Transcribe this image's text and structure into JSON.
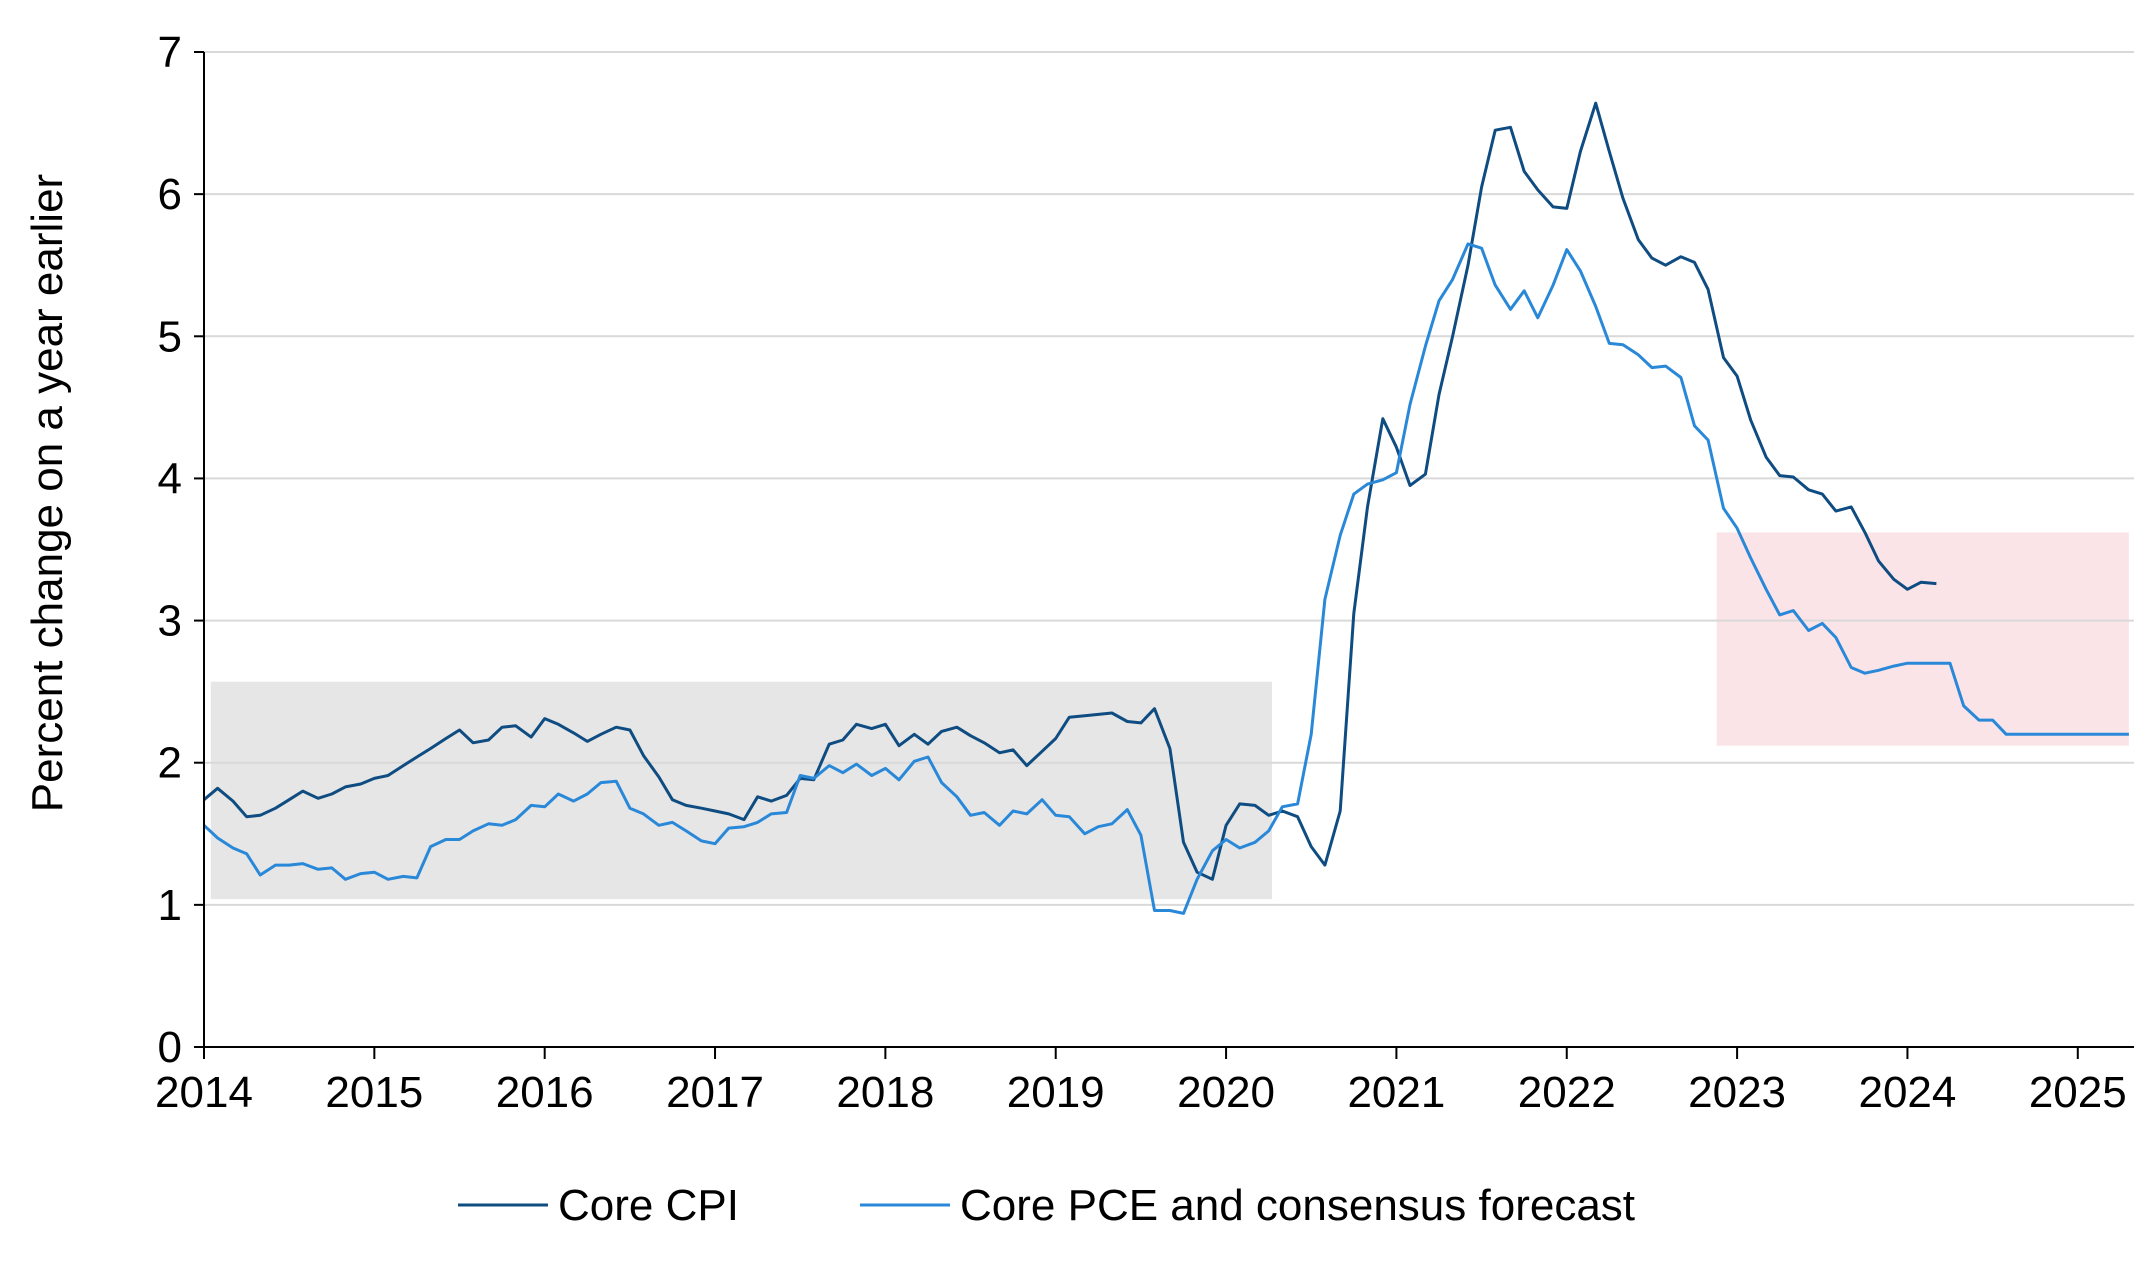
{
  "chart_data": {
    "type": "line",
    "title": "",
    "xlabel": "",
    "ylabel": "Percent change on a year earlier",
    "xlim": [
      2014.0,
      2025.33
    ],
    "ylim": [
      0,
      7
    ],
    "x_ticks": [
      "2014",
      "2015",
      "2016",
      "2017",
      "2018",
      "2019",
      "2020",
      "2021",
      "2022",
      "2023",
      "2024",
      "2025"
    ],
    "y_ticks": [
      "0",
      "1",
      "2",
      "3",
      "4",
      "5",
      "6",
      "7"
    ],
    "grid": "horizontal",
    "legend_position": "bottom",
    "shaded_ranges": [
      {
        "x0": 2014.04,
        "x1": 2020.27,
        "y0": 1.04,
        "y1": 2.57,
        "color": "#e6e6e6"
      },
      {
        "x0": 2022.88,
        "x1": 2025.3,
        "y0": 2.12,
        "y1": 3.62,
        "color": "#fbe4e8"
      }
    ],
    "series": [
      {
        "name": "Core CPI",
        "color": "#0f4c81",
        "points": [
          [
            2014.0,
            1.74
          ],
          [
            2014.08,
            1.82
          ],
          [
            2014.17,
            1.73
          ],
          [
            2014.25,
            1.62
          ],
          [
            2014.33,
            1.63
          ],
          [
            2014.42,
            1.68
          ],
          [
            2014.5,
            1.74
          ],
          [
            2014.58,
            1.8
          ],
          [
            2014.67,
            1.75
          ],
          [
            2014.75,
            1.78
          ],
          [
            2014.83,
            1.83
          ],
          [
            2014.92,
            1.85
          ],
          [
            2015.0,
            1.89
          ],
          [
            2015.08,
            1.91
          ],
          [
            2015.17,
            1.98
          ],
          [
            2015.25,
            2.04
          ],
          [
            2015.33,
            2.1
          ],
          [
            2015.42,
            2.17
          ],
          [
            2015.5,
            2.23
          ],
          [
            2015.58,
            2.14
          ],
          [
            2015.67,
            2.16
          ],
          [
            2015.75,
            2.25
          ],
          [
            2015.83,
            2.26
          ],
          [
            2015.92,
            2.18
          ],
          [
            2016.0,
            2.31
          ],
          [
            2016.08,
            2.27
          ],
          [
            2016.17,
            2.21
          ],
          [
            2016.25,
            2.15
          ],
          [
            2016.33,
            2.2
          ],
          [
            2016.42,
            2.25
          ],
          [
            2016.5,
            2.23
          ],
          [
            2016.58,
            2.05
          ],
          [
            2016.67,
            1.9
          ],
          [
            2016.75,
            1.74
          ],
          [
            2016.83,
            1.7
          ],
          [
            2016.92,
            1.68
          ],
          [
            2017.0,
            1.66
          ],
          [
            2017.08,
            1.64
          ],
          [
            2017.17,
            1.6
          ],
          [
            2017.25,
            1.76
          ],
          [
            2017.33,
            1.73
          ],
          [
            2017.42,
            1.77
          ],
          [
            2017.5,
            1.89
          ],
          [
            2017.58,
            1.88
          ],
          [
            2017.67,
            2.13
          ],
          [
            2017.75,
            2.16
          ],
          [
            2017.83,
            2.27
          ],
          [
            2017.92,
            2.24
          ],
          [
            2018.0,
            2.27
          ],
          [
            2018.08,
            2.12
          ],
          [
            2018.17,
            2.2
          ],
          [
            2018.25,
            2.13
          ],
          [
            2018.33,
            2.22
          ],
          [
            2018.42,
            2.25
          ],
          [
            2018.5,
            2.19
          ],
          [
            2018.58,
            2.14
          ],
          [
            2018.67,
            2.07
          ],
          [
            2018.75,
            2.09
          ],
          [
            2018.83,
            1.98
          ],
          [
            2018.92,
            2.08
          ],
          [
            2019.0,
            2.17
          ],
          [
            2019.08,
            2.32
          ],
          [
            2019.17,
            2.33
          ],
          [
            2019.25,
            2.34
          ],
          [
            2019.33,
            2.35
          ],
          [
            2019.42,
            2.29
          ],
          [
            2019.5,
            2.28
          ],
          [
            2019.58,
            2.38
          ],
          [
            2019.67,
            2.1
          ],
          [
            2019.75,
            1.44
          ],
          [
            2019.83,
            1.23
          ],
          [
            2019.92,
            1.18
          ],
          [
            2020.0,
            1.56
          ],
          [
            2020.08,
            1.71
          ],
          [
            2020.17,
            1.7
          ],
          [
            2020.25,
            1.63
          ],
          [
            2020.33,
            1.66
          ],
          [
            2020.42,
            1.62
          ],
          [
            2020.5,
            1.41
          ],
          [
            2020.58,
            1.28
          ],
          [
            2020.67,
            1.66
          ],
          [
            2020.75,
            3.05
          ],
          [
            2020.83,
            3.8
          ],
          [
            2020.92,
            4.42
          ],
          [
            2021.0,
            4.22
          ],
          [
            2021.08,
            3.95
          ],
          [
            2021.17,
            4.03
          ],
          [
            2021.25,
            4.59
          ],
          [
            2021.33,
            5.0
          ],
          [
            2021.42,
            5.5
          ],
          [
            2021.5,
            6.05
          ],
          [
            2021.58,
            6.45
          ],
          [
            2021.67,
            6.47
          ],
          [
            2021.75,
            6.16
          ],
          [
            2021.83,
            6.03
          ],
          [
            2021.92,
            5.91
          ],
          [
            2022.0,
            5.9
          ],
          [
            2022.08,
            6.3
          ],
          [
            2022.17,
            6.64
          ],
          [
            2022.25,
            6.3
          ],
          [
            2022.33,
            5.97
          ],
          [
            2022.42,
            5.68
          ],
          [
            2022.5,
            5.55
          ],
          [
            2022.58,
            5.5
          ],
          [
            2022.67,
            5.56
          ],
          [
            2022.75,
            5.52
          ],
          [
            2022.83,
            5.33
          ],
          [
            2022.92,
            4.85
          ],
          [
            2023.0,
            4.72
          ],
          [
            2023.08,
            4.41
          ],
          [
            2023.17,
            4.15
          ],
          [
            2023.25,
            4.02
          ],
          [
            2023.33,
            4.01
          ],
          [
            2023.42,
            3.92
          ],
          [
            2023.5,
            3.89
          ],
          [
            2023.58,
            3.77
          ],
          [
            2023.67,
            3.8
          ],
          [
            2023.75,
            3.62
          ],
          [
            2023.83,
            3.42
          ],
          [
            2023.92,
            3.29
          ],
          [
            2024.0,
            3.22
          ],
          [
            2024.08,
            3.27
          ],
          [
            2024.17,
            3.26
          ]
        ]
      },
      {
        "name": "Core PCE and consensus forecast",
        "color": "#2a88d8",
        "points": [
          [
            2014.0,
            1.56
          ],
          [
            2014.08,
            1.47
          ],
          [
            2014.17,
            1.4
          ],
          [
            2014.25,
            1.36
          ],
          [
            2014.33,
            1.21
          ],
          [
            2014.42,
            1.28
          ],
          [
            2014.5,
            1.28
          ],
          [
            2014.58,
            1.29
          ],
          [
            2014.67,
            1.25
          ],
          [
            2014.75,
            1.26
          ],
          [
            2014.83,
            1.18
          ],
          [
            2014.92,
            1.22
          ],
          [
            2015.0,
            1.23
          ],
          [
            2015.08,
            1.18
          ],
          [
            2015.17,
            1.2
          ],
          [
            2015.25,
            1.19
          ],
          [
            2015.33,
            1.41
          ],
          [
            2015.42,
            1.46
          ],
          [
            2015.5,
            1.46
          ],
          [
            2015.58,
            1.52
          ],
          [
            2015.67,
            1.57
          ],
          [
            2015.75,
            1.56
          ],
          [
            2015.83,
            1.6
          ],
          [
            2015.92,
            1.7
          ],
          [
            2016.0,
            1.69
          ],
          [
            2016.08,
            1.78
          ],
          [
            2016.17,
            1.73
          ],
          [
            2016.25,
            1.78
          ],
          [
            2016.33,
            1.86
          ],
          [
            2016.42,
            1.87
          ],
          [
            2016.5,
            1.68
          ],
          [
            2016.58,
            1.64
          ],
          [
            2016.67,
            1.56
          ],
          [
            2016.75,
            1.58
          ],
          [
            2016.83,
            1.52
          ],
          [
            2016.92,
            1.45
          ],
          [
            2017.0,
            1.43
          ],
          [
            2017.08,
            1.54
          ],
          [
            2017.17,
            1.55
          ],
          [
            2017.25,
            1.58
          ],
          [
            2017.33,
            1.64
          ],
          [
            2017.42,
            1.65
          ],
          [
            2017.5,
            1.91
          ],
          [
            2017.58,
            1.89
          ],
          [
            2017.67,
            1.98
          ],
          [
            2017.75,
            1.93
          ],
          [
            2017.83,
            1.99
          ],
          [
            2017.92,
            1.91
          ],
          [
            2018.0,
            1.96
          ],
          [
            2018.08,
            1.88
          ],
          [
            2018.17,
            2.01
          ],
          [
            2018.25,
            2.04
          ],
          [
            2018.33,
            1.86
          ],
          [
            2018.42,
            1.76
          ],
          [
            2018.5,
            1.63
          ],
          [
            2018.58,
            1.65
          ],
          [
            2018.67,
            1.56
          ],
          [
            2018.75,
            1.66
          ],
          [
            2018.83,
            1.64
          ],
          [
            2018.92,
            1.74
          ],
          [
            2019.0,
            1.63
          ],
          [
            2019.08,
            1.62
          ],
          [
            2019.17,
            1.5
          ],
          [
            2019.25,
            1.55
          ],
          [
            2019.33,
            1.57
          ],
          [
            2019.42,
            1.67
          ],
          [
            2019.5,
            1.49
          ],
          [
            2019.58,
            0.96
          ],
          [
            2019.67,
            0.96
          ],
          [
            2019.75,
            0.94
          ],
          [
            2019.83,
            1.18
          ],
          [
            2019.92,
            1.38
          ],
          [
            2020.0,
            1.46
          ],
          [
            2020.08,
            1.4
          ],
          [
            2020.17,
            1.44
          ],
          [
            2020.25,
            1.52
          ],
          [
            2020.33,
            1.69
          ],
          [
            2020.42,
            1.71
          ],
          [
            2020.5,
            2.2
          ],
          [
            2020.58,
            3.15
          ],
          [
            2020.67,
            3.6
          ],
          [
            2020.75,
            3.89
          ],
          [
            2020.83,
            3.96
          ],
          [
            2020.92,
            3.99
          ],
          [
            2021.0,
            4.04
          ],
          [
            2021.08,
            4.52
          ],
          [
            2021.17,
            4.93
          ],
          [
            2021.25,
            5.25
          ],
          [
            2021.33,
            5.4
          ],
          [
            2021.42,
            5.65
          ],
          [
            2021.5,
            5.62
          ],
          [
            2021.58,
            5.36
          ],
          [
            2021.67,
            5.19
          ],
          [
            2021.75,
            5.32
          ],
          [
            2021.83,
            5.13
          ],
          [
            2021.92,
            5.36
          ],
          [
            2022.0,
            5.61
          ],
          [
            2022.08,
            5.46
          ],
          [
            2022.17,
            5.21
          ],
          [
            2022.25,
            4.95
          ],
          [
            2022.33,
            4.94
          ],
          [
            2022.42,
            4.87
          ],
          [
            2022.5,
            4.78
          ],
          [
            2022.58,
            4.79
          ],
          [
            2022.67,
            4.71
          ],
          [
            2022.75,
            4.37
          ],
          [
            2022.83,
            4.27
          ],
          [
            2022.92,
            3.79
          ],
          [
            2023.0,
            3.65
          ],
          [
            2023.08,
            3.44
          ],
          [
            2023.17,
            3.22
          ],
          [
            2023.25,
            3.04
          ],
          [
            2023.33,
            3.07
          ],
          [
            2023.42,
            2.93
          ],
          [
            2023.5,
            2.98
          ],
          [
            2023.58,
            2.88
          ],
          [
            2023.67,
            2.67
          ],
          [
            2023.75,
            2.63
          ],
          [
            2023.83,
            2.65
          ],
          [
            2023.92,
            2.68
          ],
          [
            2024.0,
            2.7
          ],
          [
            2024.25,
            2.7
          ],
          [
            2024.33,
            2.4
          ],
          [
            2024.42,
            2.3
          ],
          [
            2024.5,
            2.3
          ],
          [
            2024.58,
            2.2
          ],
          [
            2024.83,
            2.2
          ],
          [
            2025.08,
            2.2
          ],
          [
            2025.3,
            2.2
          ]
        ]
      }
    ]
  }
}
